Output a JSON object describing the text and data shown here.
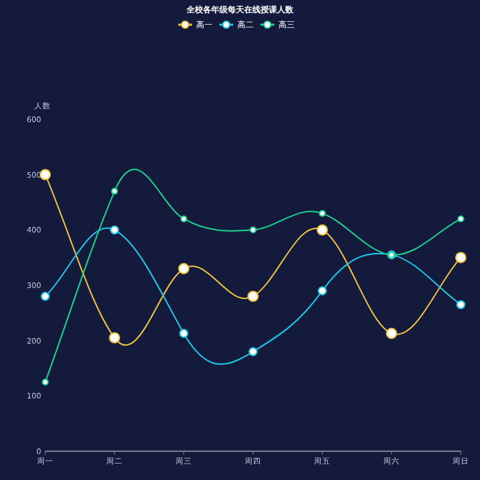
{
  "chart_data": {
    "type": "line",
    "title": "全校各年级每天在线授课人数",
    "ylabel": "人数",
    "categories": [
      "周一",
      "周二",
      "周三",
      "周四",
      "周五",
      "周六",
      "周日"
    ],
    "series": [
      {
        "name": "高一",
        "color": "#f0c43c",
        "values": [
          500,
          205,
          330,
          280,
          400,
          213,
          350
        ]
      },
      {
        "name": "高二",
        "color": "#1ec8e6",
        "values": [
          280,
          400,
          213,
          180,
          290,
          355,
          265
        ]
      },
      {
        "name": "高三",
        "color": "#1bd492",
        "values": [
          125,
          470,
          420,
          400,
          430,
          355,
          420
        ]
      }
    ],
    "ylim": [
      0,
      600
    ],
    "yticks": [
      0,
      100,
      200,
      300,
      400,
      500,
      600
    ],
    "legend": "top",
    "marker": "circle"
  }
}
